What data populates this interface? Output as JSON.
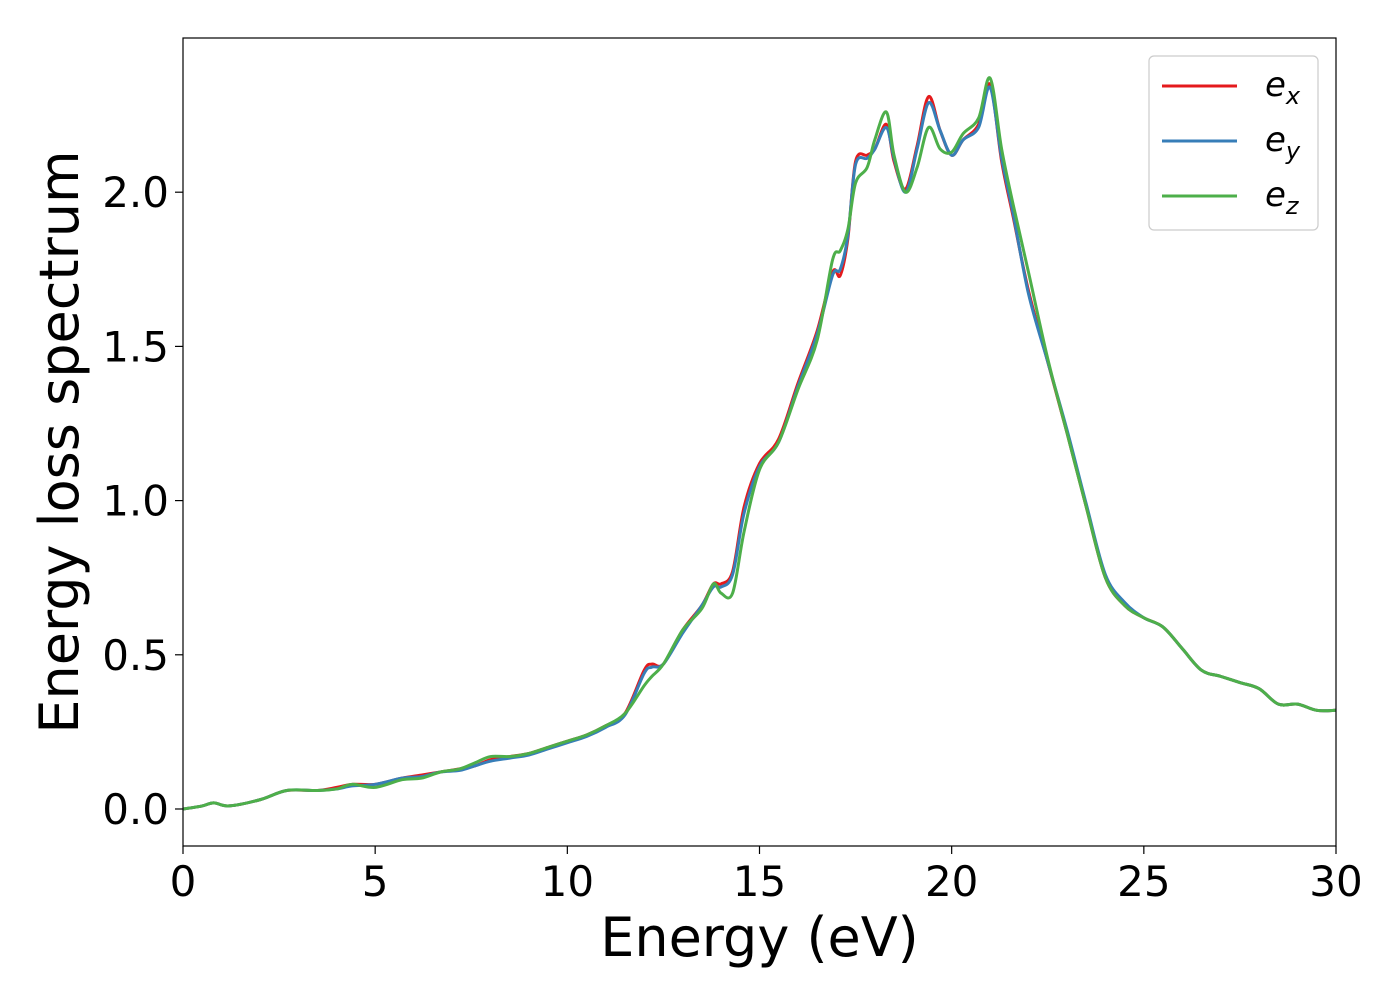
{
  "chart_data": {
    "type": "line",
    "xlabel": "Energy (eV)",
    "ylabel": "Energy loss spectrum",
    "xlim": [
      0,
      30
    ],
    "ylim": [
      -0.12,
      2.5
    ],
    "xticks": [
      0,
      5,
      10,
      15,
      20,
      25,
      30
    ],
    "yticks": [
      0.0,
      0.5,
      1.0,
      1.5,
      2.0
    ],
    "xtick_labels": [
      "0",
      "5",
      "10",
      "15",
      "20",
      "25",
      "30"
    ],
    "ytick_labels": [
      "0.0",
      "0.5",
      "1.0",
      "1.5",
      "2.0"
    ],
    "grid": false,
    "legend_position": "top-right",
    "series": [
      {
        "name": "e",
        "subscript": "x",
        "color": "#e41a1c",
        "x": [
          0,
          0.5,
          0.8,
          1.2,
          2,
          2.7,
          3.5,
          4.0,
          4.4,
          5.0,
          5.7,
          6.2,
          6.7,
          7.2,
          7.6,
          8.0,
          8.5,
          9.0,
          9.5,
          10.0,
          10.5,
          11.0,
          11.5,
          12.0,
          12.2,
          12.5,
          13.0,
          13.5,
          13.8,
          14.0,
          14.3,
          14.6,
          15.0,
          15.5,
          16.0,
          16.5,
          16.9,
          17.1,
          17.3,
          17.5,
          17.8,
          18.0,
          18.3,
          18.5,
          18.8,
          19.1,
          19.4,
          19.7,
          20.0,
          20.3,
          20.7,
          21.0,
          21.3,
          21.6,
          22.0,
          22.5,
          23.0,
          23.5,
          24.0,
          24.5,
          25.0,
          25.5,
          26.0,
          26.5,
          27.0,
          27.5,
          28.0,
          28.5,
          29.0,
          29.5,
          30.0
        ],
        "y": [
          0.0,
          0.01,
          0.02,
          0.01,
          0.03,
          0.06,
          0.06,
          0.07,
          0.08,
          0.08,
          0.1,
          0.11,
          0.12,
          0.13,
          0.14,
          0.16,
          0.17,
          0.18,
          0.2,
          0.22,
          0.24,
          0.27,
          0.31,
          0.45,
          0.47,
          0.47,
          0.58,
          0.66,
          0.73,
          0.73,
          0.77,
          0.98,
          1.12,
          1.2,
          1.38,
          1.55,
          1.74,
          1.73,
          1.85,
          2.1,
          2.12,
          2.14,
          2.22,
          2.1,
          2.01,
          2.15,
          2.31,
          2.2,
          2.12,
          2.17,
          2.22,
          2.35,
          2.1,
          1.92,
          1.68,
          1.45,
          1.22,
          0.98,
          0.75,
          0.66,
          0.62,
          0.59,
          0.52,
          0.45,
          0.43,
          0.41,
          0.39,
          0.34,
          0.34,
          0.32,
          0.32
        ]
      },
      {
        "name": "e",
        "subscript": "y",
        "color": "#377eb8",
        "x": [
          0,
          0.5,
          0.8,
          1.2,
          2,
          2.7,
          3.5,
          4.0,
          4.4,
          5.0,
          5.7,
          6.2,
          6.7,
          7.2,
          7.6,
          8.0,
          8.5,
          9.0,
          9.5,
          10.0,
          10.5,
          11.0,
          11.5,
          12.0,
          12.2,
          12.5,
          13.0,
          13.5,
          13.8,
          14.0,
          14.3,
          14.6,
          15.0,
          15.5,
          16.0,
          16.5,
          16.9,
          17.1,
          17.3,
          17.5,
          17.8,
          18.0,
          18.3,
          18.5,
          18.8,
          19.1,
          19.4,
          19.7,
          20.0,
          20.3,
          20.7,
          21.0,
          21.3,
          21.6,
          22.0,
          22.5,
          23.0,
          23.5,
          24.0,
          24.5,
          25.0,
          25.5,
          26.0,
          26.5,
          27.0,
          27.5,
          28.0,
          28.5,
          29.0,
          29.5,
          30.0
        ],
        "y": [
          0.0,
          0.01,
          0.02,
          0.01,
          0.03,
          0.06,
          0.06,
          0.065,
          0.075,
          0.08,
          0.1,
          0.105,
          0.12,
          0.125,
          0.14,
          0.155,
          0.165,
          0.175,
          0.195,
          0.215,
          0.235,
          0.265,
          0.305,
          0.44,
          0.46,
          0.47,
          0.57,
          0.66,
          0.72,
          0.72,
          0.76,
          0.96,
          1.11,
          1.19,
          1.37,
          1.54,
          1.73,
          1.75,
          1.86,
          2.09,
          2.11,
          2.14,
          2.21,
          2.11,
          2.0,
          2.14,
          2.29,
          2.2,
          2.12,
          2.17,
          2.21,
          2.34,
          2.11,
          1.93,
          1.67,
          1.45,
          1.23,
          0.99,
          0.76,
          0.67,
          0.62,
          0.59,
          0.52,
          0.45,
          0.43,
          0.41,
          0.39,
          0.34,
          0.34,
          0.32,
          0.32
        ]
      },
      {
        "name": "e",
        "subscript": "z",
        "color": "#4daf4a",
        "x": [
          0,
          0.5,
          0.8,
          1.2,
          2,
          2.7,
          3.5,
          4.0,
          4.4,
          5.0,
          5.7,
          6.2,
          6.7,
          7.2,
          7.6,
          8.0,
          8.5,
          9.0,
          9.5,
          10.0,
          10.5,
          11.0,
          11.5,
          12.0,
          12.2,
          12.5,
          13.0,
          13.5,
          13.8,
          14.0,
          14.3,
          14.6,
          15.0,
          15.5,
          16.0,
          16.5,
          16.9,
          17.1,
          17.3,
          17.5,
          17.8,
          18.0,
          18.3,
          18.5,
          18.8,
          19.1,
          19.4,
          19.7,
          20.0,
          20.3,
          20.7,
          21.0,
          21.3,
          21.6,
          22.0,
          22.5,
          23.0,
          23.5,
          24.0,
          24.5,
          25.0,
          25.5,
          26.0,
          26.5,
          27.0,
          27.5,
          28.0,
          28.5,
          29.0,
          29.5,
          30.0
        ],
        "y": [
          0.0,
          0.01,
          0.02,
          0.01,
          0.03,
          0.06,
          0.06,
          0.065,
          0.08,
          0.07,
          0.095,
          0.1,
          0.12,
          0.13,
          0.15,
          0.17,
          0.17,
          0.18,
          0.2,
          0.22,
          0.24,
          0.27,
          0.31,
          0.4,
          0.43,
          0.47,
          0.58,
          0.65,
          0.73,
          0.7,
          0.7,
          0.9,
          1.1,
          1.19,
          1.36,
          1.52,
          1.78,
          1.81,
          1.88,
          2.03,
          2.08,
          2.17,
          2.26,
          2.12,
          2.0,
          2.08,
          2.21,
          2.14,
          2.13,
          2.19,
          2.24,
          2.37,
          2.14,
          1.96,
          1.74,
          1.46,
          1.22,
          0.98,
          0.75,
          0.66,
          0.62,
          0.59,
          0.52,
          0.45,
          0.43,
          0.41,
          0.39,
          0.34,
          0.34,
          0.32,
          0.32
        ]
      }
    ]
  }
}
